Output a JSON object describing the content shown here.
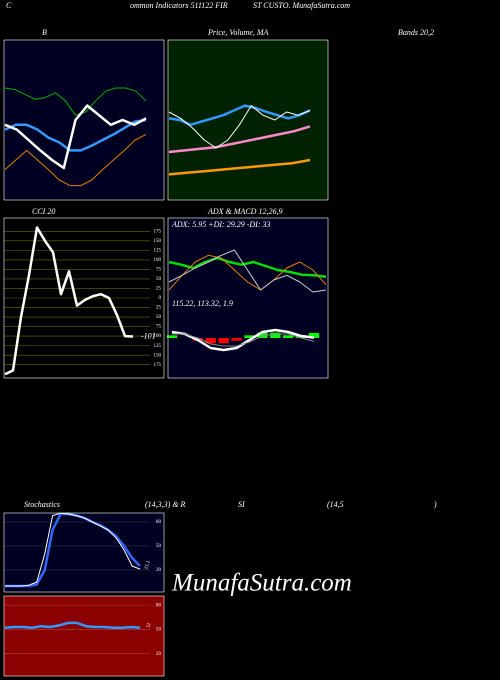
{
  "header": {
    "parts": [
      "C",
      "ommon Indicators 511122 FIR",
      "ST CUSTO. MunafaSutra.com"
    ]
  },
  "watermark": "MunafaSutra.com",
  "chart_data": [
    {
      "type": "line",
      "title_parts": [
        "B",
        "Bands 20,2"
      ],
      "background": "#000022",
      "ylim": [
        0,
        100
      ],
      "series": [
        {
          "color": "#00b000",
          "values": [
            70,
            69,
            66,
            63,
            64,
            67,
            62,
            53,
            55,
            62,
            68,
            70,
            70,
            68,
            62
          ]
        },
        {
          "color": "#3399ff",
          "values": [
            44,
            47,
            47,
            44,
            39,
            36,
            31,
            31,
            34,
            37.5,
            41,
            45,
            49,
            50
          ]
        },
        {
          "color": "#ffffff",
          "values": [
            47,
            44,
            37.5,
            31,
            25,
            20,
            50,
            59,
            53,
            47,
            50,
            47,
            51
          ]
        },
        {
          "color": "#e08000",
          "values": [
            19,
            25,
            31,
            25,
            19,
            12.5,
            9,
            9,
            12.5,
            19,
            25,
            31,
            37.5,
            41
          ]
        }
      ]
    },
    {
      "type": "line",
      "title": "Price, Volume, MA",
      "background": "#002200",
      "ylim": [
        0,
        100
      ],
      "series": [
        {
          "color": "#ff9900",
          "values": [
            16,
            17,
            18,
            19,
            20,
            21,
            22,
            23,
            25
          ]
        },
        {
          "color": "#ff88cc",
          "values": [
            30,
            31,
            32,
            33,
            35,
            37,
            39,
            41,
            43,
            46
          ]
        },
        {
          "color": "#3399ff",
          "values": [
            51,
            50,
            47,
            49,
            51,
            53,
            56,
            59,
            57.5,
            55,
            53,
            51,
            53,
            56
          ]
        },
        {
          "color": "#ffffff",
          "values": [
            55,
            51,
            45,
            37.5,
            32.5,
            37.5,
            47,
            59,
            53,
            50,
            55,
            53,
            56
          ]
        }
      ]
    },
    {
      "type": "line",
      "title": "CCI 20",
      "background": "#000000",
      "ylim": [
        -210,
        210
      ],
      "grid": true,
      "grid_color": "#6b6b00",
      "yticks": [
        175,
        150,
        125,
        100,
        75,
        50,
        25,
        0,
        {
          "value": -25,
          "label": "25"
        },
        {
          "value": -50,
          "label": "50"
        },
        {
          "value": -75,
          "label": "75"
        },
        {
          "value": -100,
          "label": "100"
        },
        {
          "value": -125,
          "label": "125"
        },
        {
          "value": -150,
          "label": "150"
        },
        {
          "value": -175,
          "label": "175"
        }
      ],
      "series": [
        {
          "color": "#ffffff",
          "values": [
            -200,
            -190,
            -50,
            60,
            185,
            150,
            120,
            10,
            70,
            -20,
            -5,
            5,
            10,
            0,
            -45,
            -100,
            -101
          ]
        }
      ]
    },
    {
      "type": "line",
      "title": "ADX  & MACD 12,26,9",
      "annotation": "ADX: 5.95 +DI: 29.29 -DI: 33",
      "background": "#000022",
      "ylim": [
        0,
        60
      ],
      "series": [
        {
          "color": "#00dd00",
          "values": [
            27,
            25,
            22.5,
            27,
            30,
            27,
            25,
            27,
            24,
            21,
            19.5,
            17.5,
            17,
            16
          ]
        },
        {
          "color": "#e08000",
          "values": [
            6,
            17,
            27,
            32,
            30,
            21,
            12,
            6,
            13.5,
            22.5,
            27,
            21,
            10
          ]
        },
        {
          "color": "#cccccc",
          "values": [
            12,
            17,
            22.5,
            27,
            32,
            36,
            21,
            6,
            13.5,
            17,
            12,
            4.5,
            6
          ]
        }
      ]
    },
    {
      "type": "line",
      "annotation": "115.22, 113.32, 1.9",
      "background": "#000022",
      "ylim": [
        95,
        135
      ],
      "y2lim": [
        -15,
        15
      ],
      "series": [
        {
          "kind": "bar",
          "axis": "y2",
          "color_up": "#00ff00",
          "color_down": "#ff0000",
          "values": [
            1,
            0,
            -1,
            -2,
            -2,
            -1,
            1,
            2,
            2,
            1,
            1,
            1.9
          ]
        },
        {
          "color": "#ffffff",
          "values": [
            118,
            117,
            114,
            110,
            109,
            110,
            114,
            118,
            119,
            118,
            116,
            115.22
          ]
        },
        {
          "color": "#888888",
          "values": [
            117,
            117,
            115,
            112,
            111,
            111,
            113,
            116,
            117,
            117,
            115,
            113.32
          ]
        }
      ]
    },
    {
      "type": "line",
      "title_parts": [
        "Stochastics",
        "(14,3,3) & R",
        "SI",
        "(14,5",
        ")"
      ],
      "background": "#000022",
      "ylim": [
        -7.5,
        91.25
      ],
      "grid": true,
      "grid_color": "#444444",
      "yticks": [
        80,
        50,
        20
      ],
      "series": [
        {
          "color": "#3366ff",
          "values": [
            0,
            0,
            0,
            0,
            2,
            20,
            70,
            90,
            90,
            88,
            85,
            80,
            76,
            70,
            62,
            50,
            35,
            25
          ]
        },
        {
          "color": "#ffffff",
          "values": [
            0,
            0,
            0,
            1,
            5,
            40,
            88,
            91,
            90,
            88,
            85,
            80,
            75,
            70,
            60,
            45,
            25,
            21.1
          ]
        }
      ]
    },
    {
      "type": "line",
      "background": "#8b0000",
      "ylim": [
        -7.5,
        91.25
      ],
      "grid": true,
      "grid_color": "#aa4444",
      "yticks": [
        80,
        50,
        20
      ],
      "series": [
        {
          "color": "#3399ff",
          "values": [
            52,
            53,
            53,
            52,
            54,
            53,
            55,
            58,
            58,
            54,
            53,
            53,
            52,
            52,
            53,
            52
          ]
        }
      ]
    }
  ]
}
